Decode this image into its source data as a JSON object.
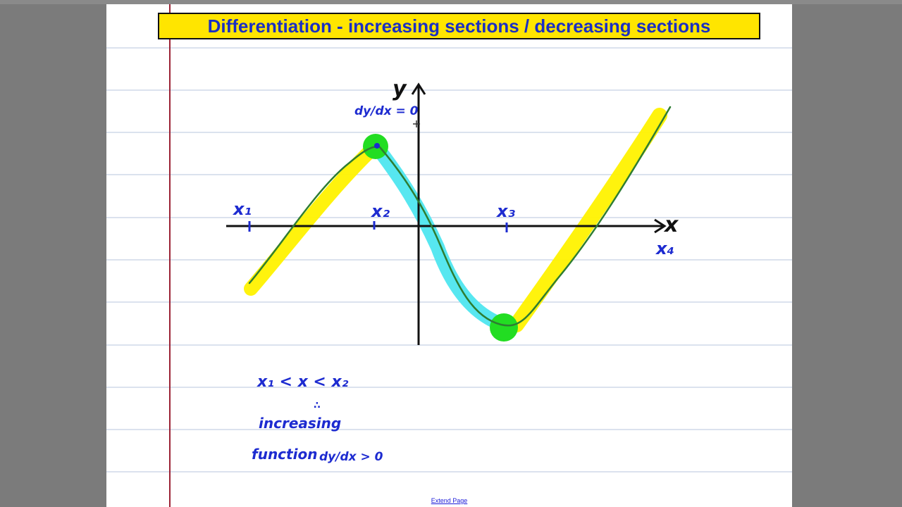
{
  "title": "Differentiation - increasing sections / decreasing sections",
  "graph": {
    "labels": {
      "y_axis": "y",
      "x_axis": "x",
      "x1": "x₁",
      "x2": "x₂",
      "x3": "x₃",
      "x4": "x₄",
      "stationary_note": "dy/dx = 0"
    },
    "highlight_colors": {
      "increasing": "#fff200",
      "decreasing": "#4ee6ef",
      "stationary_point": "#22dd22",
      "curve": "#2e7d32",
      "ink": "#1d2bd0"
    }
  },
  "notes": {
    "inequality": "x₁ < x < x₂",
    "therefore": "∴",
    "line1": "increasing",
    "line2": "function",
    "condition": "dy/dx > 0"
  },
  "footer": {
    "extend_page_label": "Extend Page"
  }
}
